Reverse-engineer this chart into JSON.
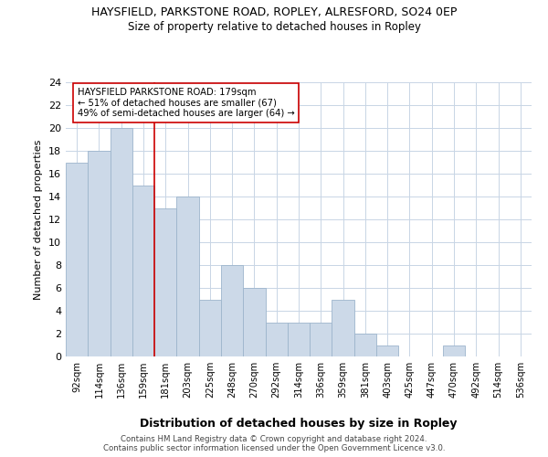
{
  "title1": "HAYSFIELD, PARKSTONE ROAD, ROPLEY, ALRESFORD, SO24 0EP",
  "title2": "Size of property relative to detached houses in Ropley",
  "xlabel": "Distribution of detached houses by size in Ropley",
  "ylabel": "Number of detached properties",
  "bar_labels": [
    "92sqm",
    "114sqm",
    "136sqm",
    "159sqm",
    "181sqm",
    "203sqm",
    "225sqm",
    "248sqm",
    "270sqm",
    "292sqm",
    "314sqm",
    "336sqm",
    "359sqm",
    "381sqm",
    "403sqm",
    "425sqm",
    "447sqm",
    "470sqm",
    "492sqm",
    "514sqm",
    "536sqm"
  ],
  "bar_values": [
    17,
    18,
    20,
    15,
    13,
    14,
    5,
    8,
    6,
    3,
    3,
    3,
    5,
    2,
    1,
    0,
    0,
    1,
    0,
    0,
    0
  ],
  "bar_color": "#ccd9e8",
  "bar_edgecolor": "#9db5cc",
  "grid_color": "#c8d5e5",
  "annotation_line_color": "#cc0000",
  "annotation_box_line1": "HAYSFIELD PARKSTONE ROAD: 179sqm",
  "annotation_box_line2": "← 51% of detached houses are smaller (67)",
  "annotation_box_line3": "49% of semi-detached houses are larger (64) →",
  "annotation_box_edgecolor": "#cc0000",
  "ylim": [
    0,
    24
  ],
  "yticks": [
    0,
    2,
    4,
    6,
    8,
    10,
    12,
    14,
    16,
    18,
    20,
    22,
    24
  ],
  "footer1": "Contains HM Land Registry data © Crown copyright and database right 2024.",
  "footer2": "Contains public sector information licensed under the Open Government Licence v3.0.",
  "background_color": "#ffffff",
  "line_x_index": 3.5
}
